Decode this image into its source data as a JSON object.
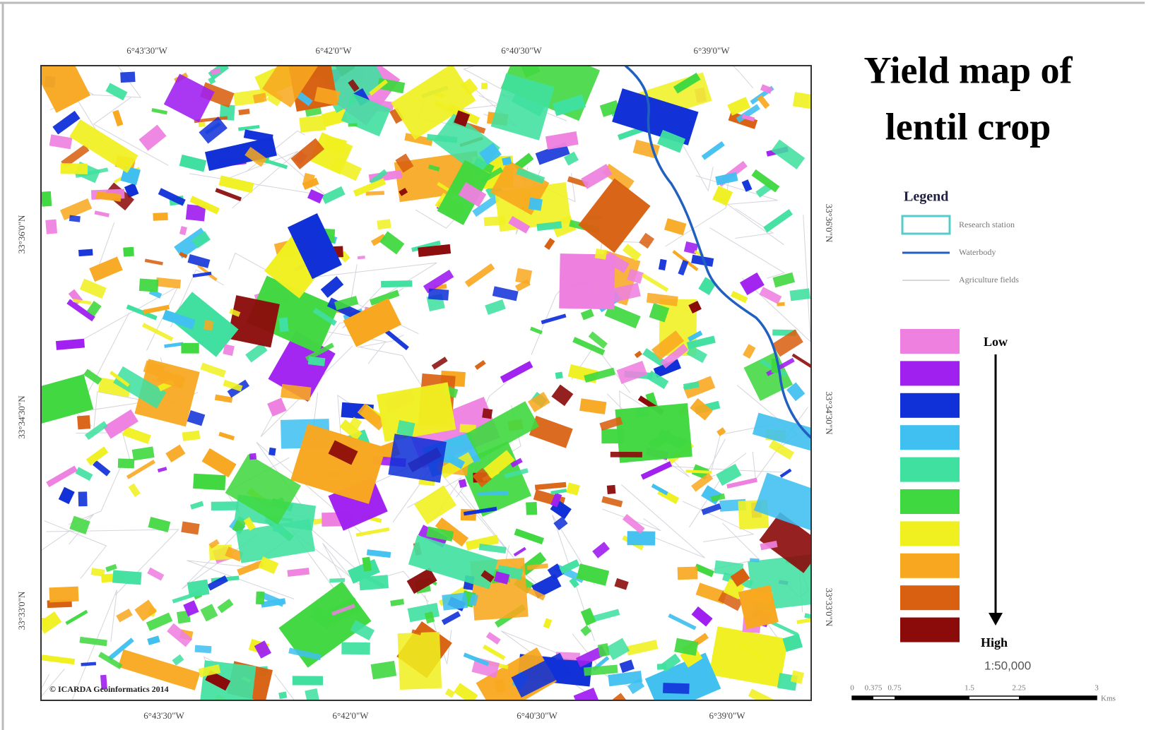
{
  "title_lines": [
    "Yield map of",
    "lentil crop"
  ],
  "map": {
    "top_labels": [
      "6°43'30\"W",
      "6°42'0\"W",
      "6°40'30\"W",
      "6°39'0\"W"
    ],
    "bottom_labels": [
      "6°43'30\"W",
      "6°42'0\"W",
      "6°40'30\"W",
      "6°39'0\"W"
    ],
    "left_labels": [
      "33°36'0\"N",
      "33°34'30\"N",
      "33°33'0\"N"
    ],
    "right_labels": [
      "33°36'0\"N",
      "33°34'30\"N",
      "33°33'0\"N"
    ],
    "credit": "© ICARDA Geoinformatics 2014"
  },
  "legend": {
    "heading": "Legend",
    "items": [
      "Research station",
      "Waterbody",
      "Agriculture fields"
    ],
    "ramp_colors": [
      "#ee80e0",
      "#a020f0",
      "#1030d8",
      "#40c0f0",
      "#40e0a0",
      "#40d840",
      "#f0f020",
      "#f8a820",
      "#d86010",
      "#8b0a0a"
    ],
    "low": "Low",
    "high": "High"
  },
  "scale": {
    "ratio": "1:50,000",
    "ticks": [
      "0",
      "0.375",
      "0.75",
      "1.5",
      "2.25",
      "3"
    ],
    "unit": "Kms"
  }
}
